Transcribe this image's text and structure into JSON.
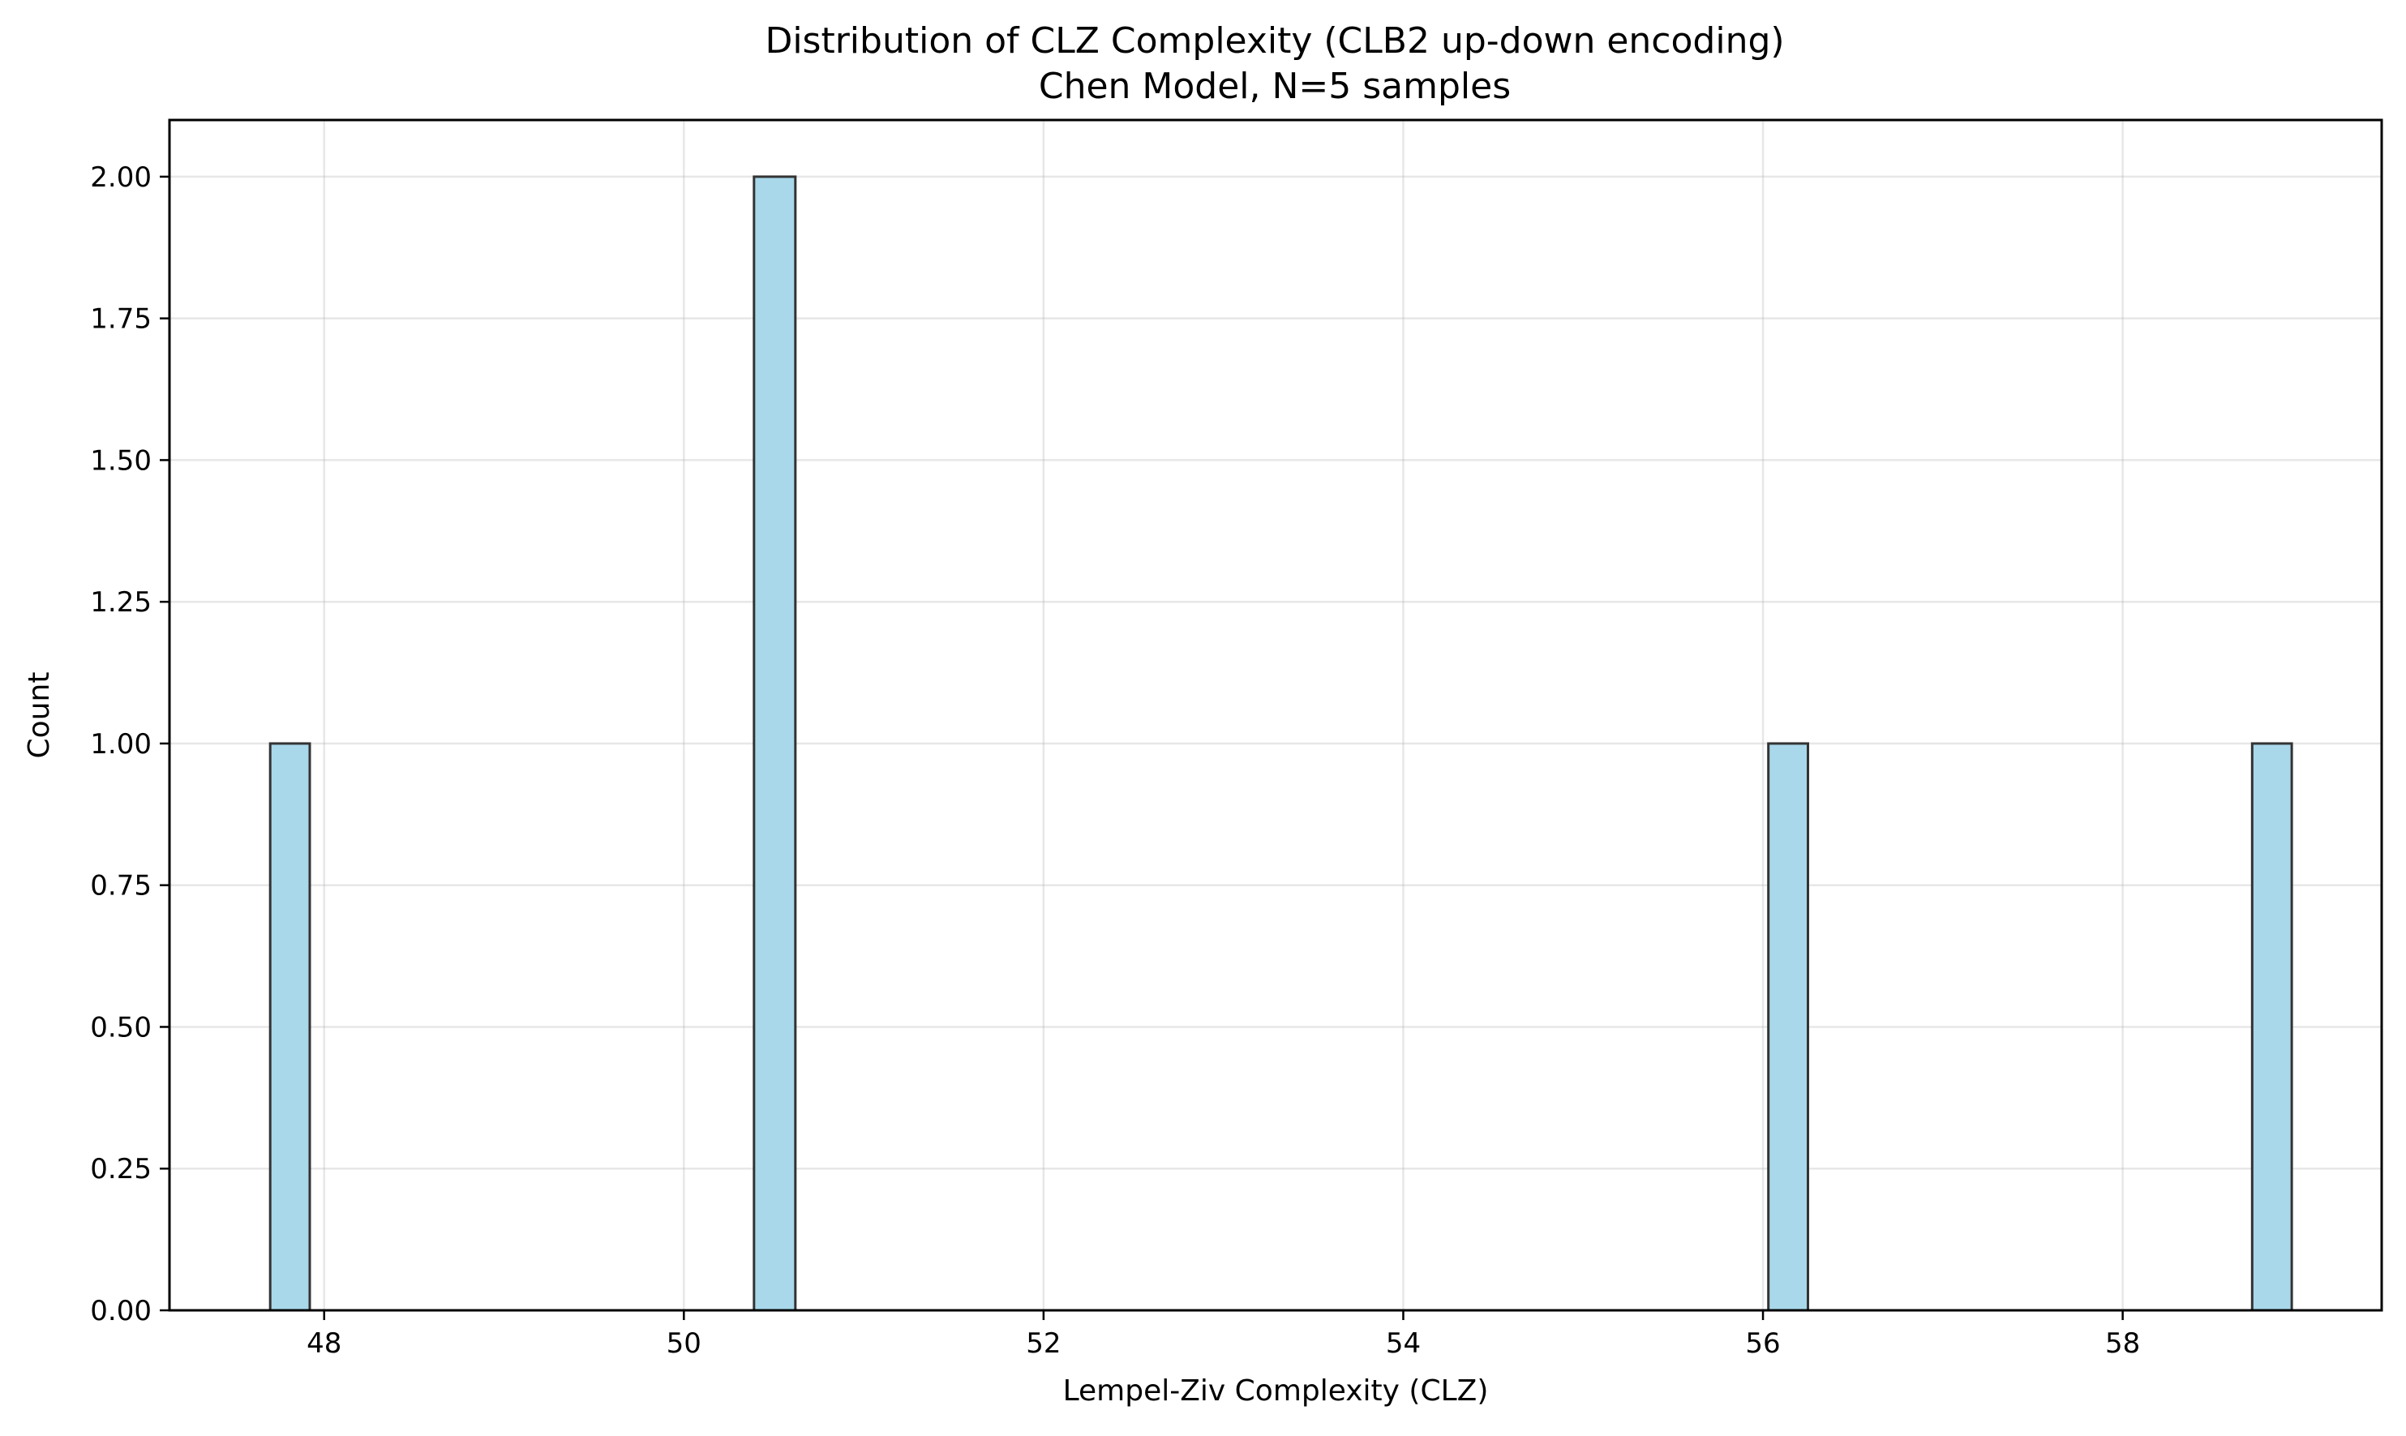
{
  "chart_data": {
    "type": "bar",
    "title": "Distribution of CLZ Complexity (CLB2 up-down encoding)",
    "subtitle": "Chen Model, N=5 samples",
    "xlabel": "Lempel-Ziv Complexity (CLZ)",
    "ylabel": "Count",
    "xlim": [
      47.14,
      59.44
    ],
    "ylim": [
      0,
      2.1
    ],
    "xticks": [
      48,
      50,
      52,
      54,
      56,
      58
    ],
    "yticks": [
      "0.00",
      "0.25",
      "0.50",
      "0.75",
      "1.00",
      "1.25",
      "1.50",
      "1.75",
      "2.00"
    ],
    "bin_width": 0.224,
    "bars": [
      {
        "x_start": 47.7,
        "x_end": 47.92,
        "count": 1
      },
      {
        "x_start": 50.39,
        "x_end": 50.62,
        "count": 2
      },
      {
        "x_start": 56.03,
        "x_end": 56.25,
        "count": 1
      },
      {
        "x_start": 58.72,
        "x_end": 58.94,
        "count": 1
      }
    ],
    "bar_color": "#a8d8ea",
    "edge_color": "#333333",
    "grid": true
  }
}
